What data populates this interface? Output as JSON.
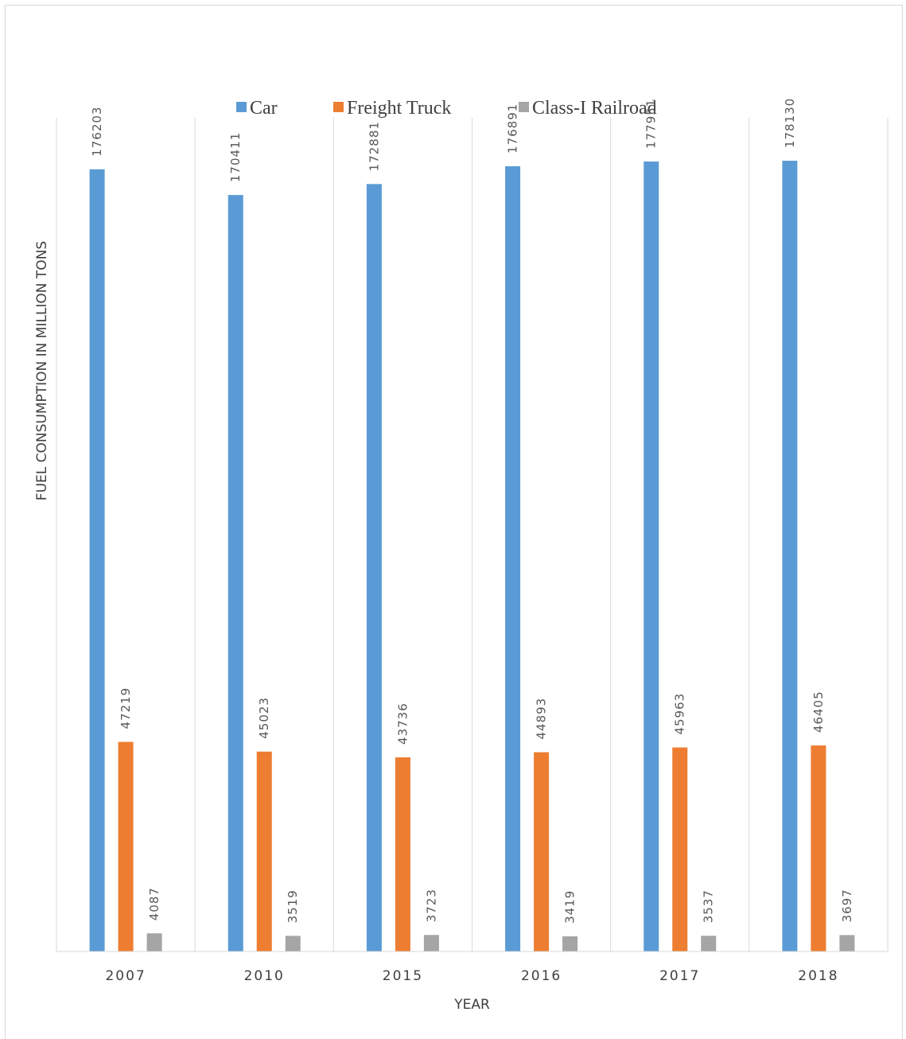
{
  "chart_data": {
    "type": "bar",
    "title": "",
    "xlabel": "YEAR",
    "ylabel": "FUEL CONSUMPTION IN MILLION TONS",
    "categories": [
      "2007",
      "2010",
      "2015",
      "2016",
      "2017",
      "2018"
    ],
    "series": [
      {
        "name": "Car",
        "color": "#5b9bd5",
        "values": [
          176203,
          170411,
          172881,
          176891,
          177951,
          178130
        ]
      },
      {
        "name": "Freight Truck",
        "color": "#ed7d31",
        "values": [
          47219,
          45023,
          43736,
          44893,
          45963,
          46405
        ]
      },
      {
        "name": "Class-I Railroad",
        "color": "#a5a5a5",
        "values": [
          4087,
          3519,
          3723,
          3419,
          3537,
          3697
        ]
      }
    ],
    "ylim": [
      0,
      200000
    ],
    "grid": false,
    "legend_position": "top",
    "data_labels": true
  }
}
